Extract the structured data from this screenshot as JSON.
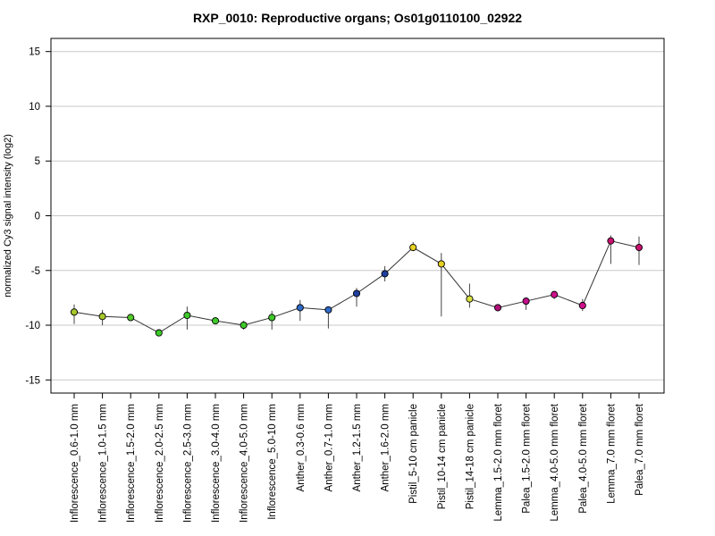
{
  "chart_data": {
    "type": "scatter",
    "title": "RXP_0010: Reproductive organs; Os01g0110100_02922",
    "xlabel": "",
    "ylabel": "normalized Cy3 signal intensity (log2)",
    "ylim": [
      -16.2,
      16.2
    ],
    "yticks": [
      15,
      10,
      5,
      0,
      -5,
      -10,
      -15
    ],
    "grid": true,
    "legend": "none",
    "categories": [
      "Inflorescence_0.6-1.0 mm",
      "Inflorescence_1.0-1.5 mm",
      "Inflorescence_1.5-2.0 mm",
      "Inflorescence_2.0-2.5 mm",
      "Inflorescence_2.5-3.0 mm",
      "Inflorescence_3.0-4.0 mm",
      "Inflorescence_4.0-5.0 mm",
      "Inflorescence_5.0-10 mm",
      "Anther_0.3-0.6 mm",
      "Anther_0.7-1.0 mm",
      "Anther_1.2-1.5 mm",
      "Anther_1.6-2.0 mm",
      "Pistil_5-10 cm panicle",
      "Pistil_10-14 cm panicle",
      "Pistil_14-18 cm panicle",
      "Lemma_1.5-2.0 mm floret",
      "Palea_1.5-2.0 mm floret",
      "Lemma_4.0-5.0 mm floret",
      "Palea_4.0-5.0 mm floret",
      "Lemma_7.0 mm floret",
      "Palea_7.0 mm floret"
    ],
    "values": [
      -8.8,
      -9.2,
      -9.3,
      -10.7,
      -9.1,
      -9.6,
      -10.0,
      -9.3,
      -8.4,
      -8.6,
      -7.1,
      -5.3,
      -2.9,
      -4.4,
      -7.6,
      -8.4,
      -7.8,
      -7.2,
      -8.2,
      -2.3,
      -2.9
    ],
    "error_low": [
      -9.9,
      -10.0,
      -9.5,
      -10.8,
      -10.4,
      -9.8,
      -10.4,
      -10.4,
      -9.6,
      -10.3,
      -8.3,
      -6.0,
      -3.2,
      -9.2,
      -8.4,
      -8.5,
      -8.6,
      -7.6,
      -8.7,
      -4.4,
      -4.5
    ],
    "error_high": [
      -8.1,
      -8.6,
      -9.1,
      -10.6,
      -8.3,
      -9.5,
      -9.6,
      -8.7,
      -7.7,
      -8.5,
      -6.6,
      -4.6,
      -2.4,
      -3.4,
      -6.2,
      -8.3,
      -7.6,
      -7.0,
      -7.6,
      -1.8,
      -1.9
    ],
    "point_colors": [
      "#a6c82a",
      "#a6c82a",
      "#52c82a",
      "#3ec82a",
      "#3ec82a",
      "#3ec82a",
      "#3ec82a",
      "#3ec82a",
      "#2e6ac8",
      "#2e6ac8",
      "#1e3f9e",
      "#1e3f9e",
      "#e6d020",
      "#e6d020",
      "#d8e040",
      "#b0107a",
      "#c0108a",
      "#d0108a",
      "#d0108a",
      "#c8106e",
      "#c8106e"
    ]
  }
}
